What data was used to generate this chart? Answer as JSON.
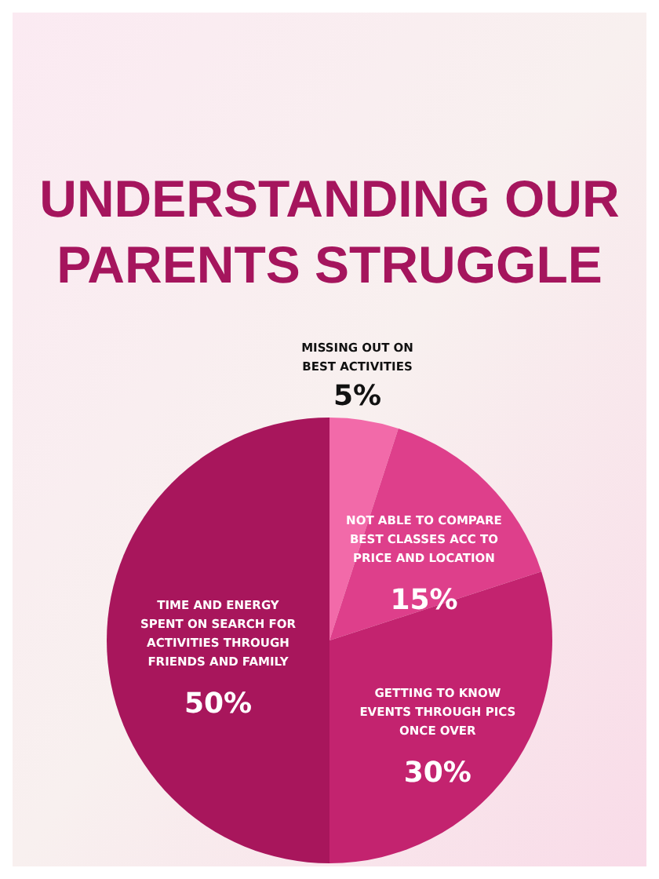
{
  "chart_data": {
    "type": "pie",
    "title": "UNDERSTANDING OUR PARENTS STRUGGLE",
    "categories": [
      "MISSING OUT ON BEST ACTIVITIES",
      "NOT ABLE TO COMPARE BEST CLASSES ACC TO PRICE AND LOCATION",
      "GETTING TO KNOW EVENTS THROUGH PICS ONCE OVER",
      "TIME AND ENERGY SPENT ON SEARCH FOR ACTIVITIES THROUGH FRIENDS AND FAMILY"
    ],
    "values": [
      5,
      15,
      30,
      50
    ],
    "colors": [
      "#f26aa9",
      "#de3f8b",
      "#c3236f",
      "#a8165c"
    ],
    "value_labels": [
      "5%",
      "15%",
      "30%",
      "50%"
    ]
  }
}
